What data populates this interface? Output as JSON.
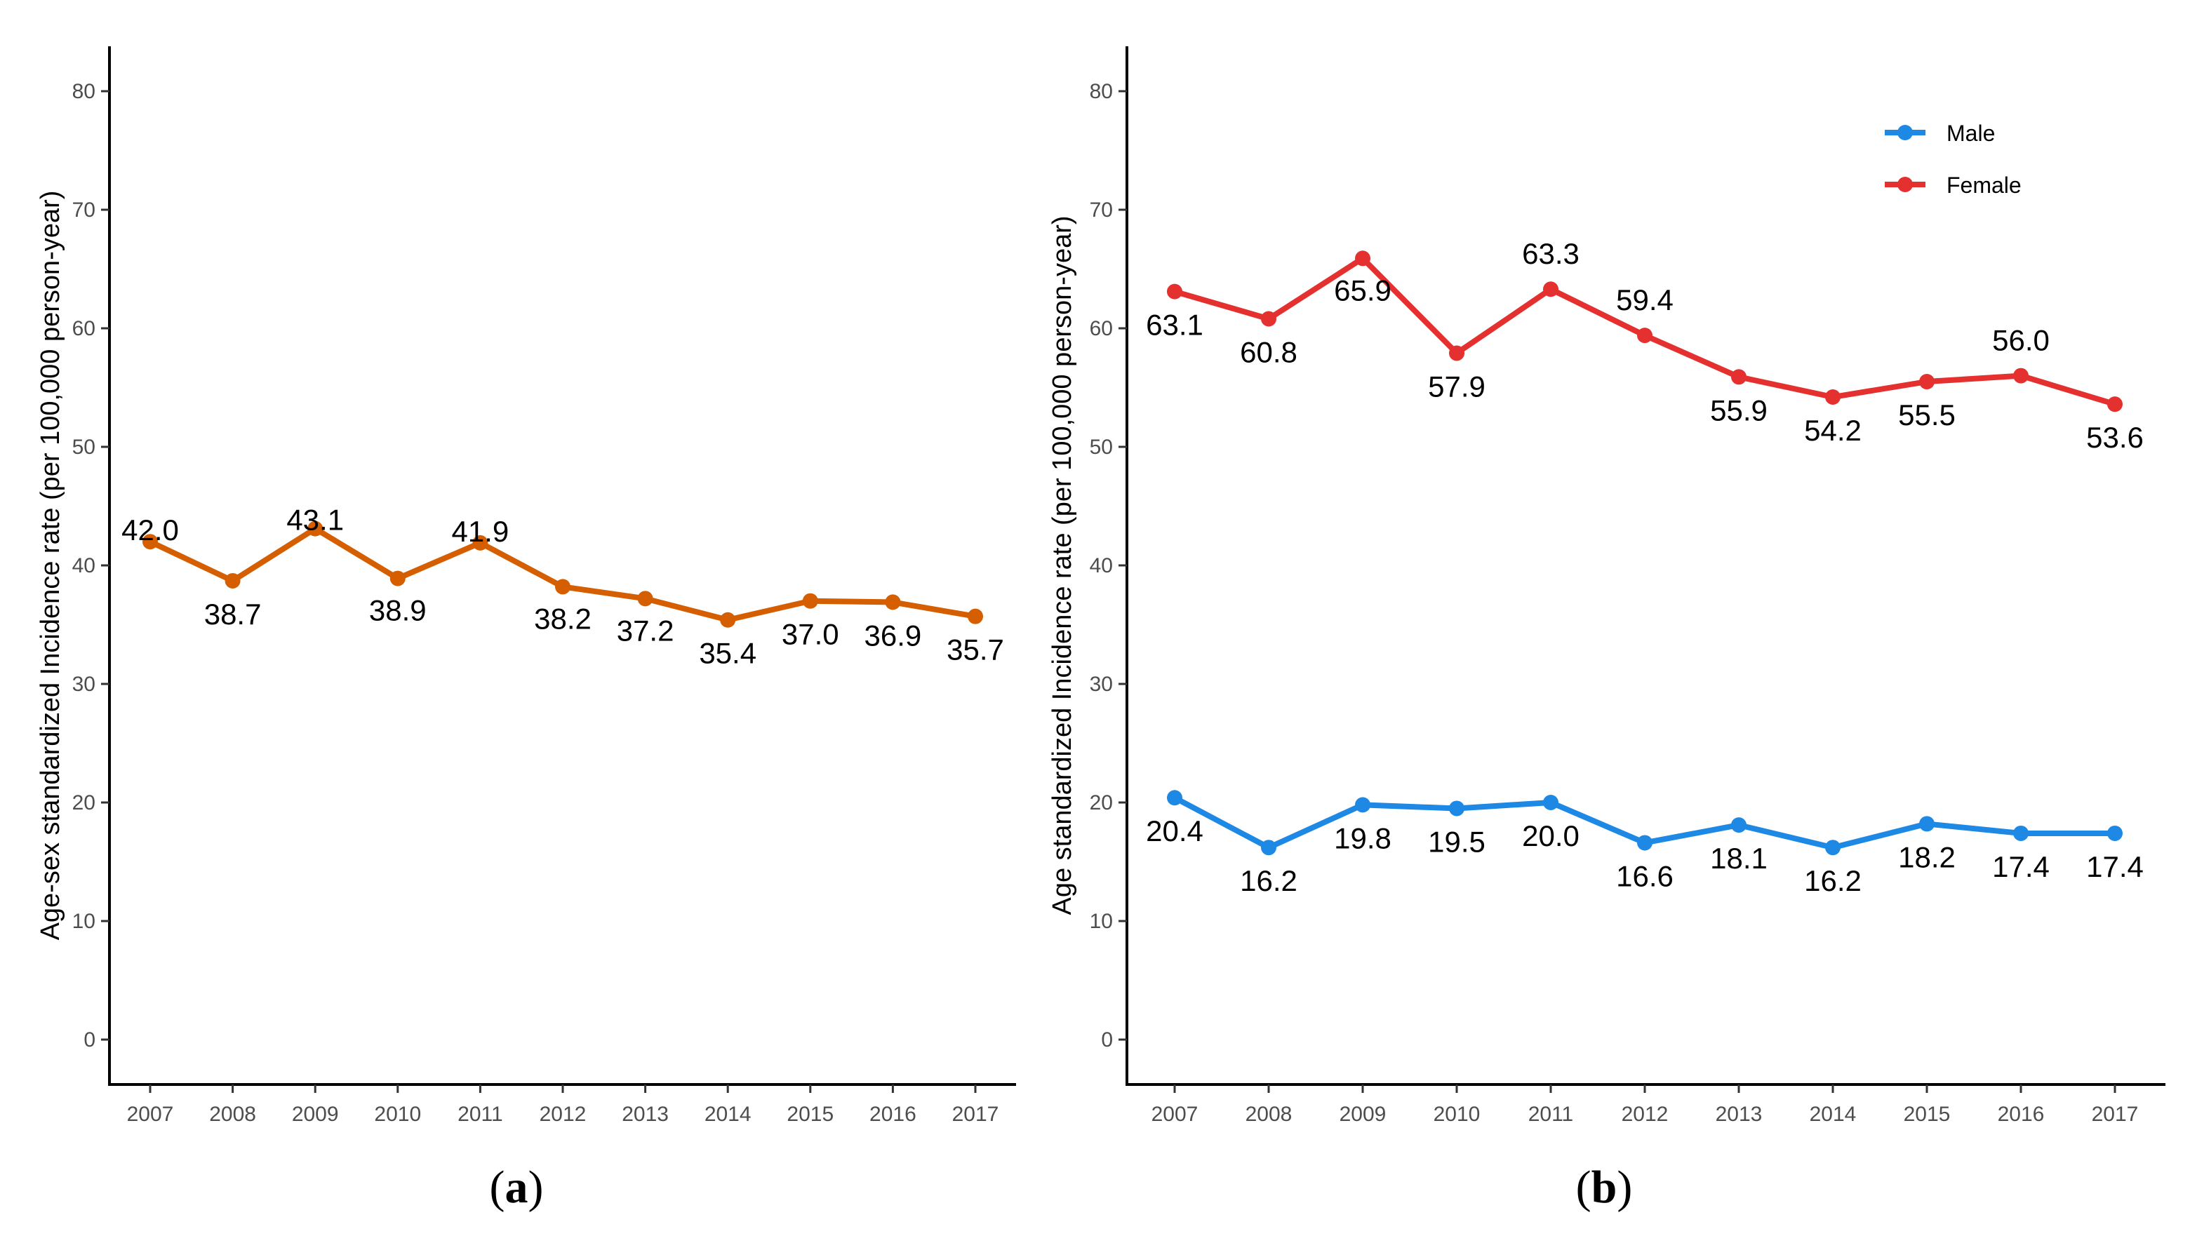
{
  "colors": {
    "overall": "#D55E00",
    "male": "#1E88E5",
    "female": "#E53030",
    "axis": "#000000",
    "tick_text": "#4d4d4d"
  },
  "chart_data": [
    {
      "type": "line",
      "panel_label": "a",
      "ylabel": "Age-sex standardized Incidence rate (per 100,000 person-year)",
      "xlabel": "",
      "ylim": [
        0,
        80
      ],
      "yticks": [
        0,
        10,
        20,
        30,
        40,
        50,
        60,
        70,
        80
      ],
      "x": [
        "2007",
        "2008",
        "2009",
        "2010",
        "2011",
        "2012",
        "2013",
        "2014",
        "2015",
        "2016",
        "2017"
      ],
      "series": [
        {
          "values": [
            42.0,
            38.7,
            43.1,
            38.9,
            41.9,
            38.2,
            37.2,
            35.4,
            37.0,
            36.9,
            35.7
          ],
          "labels": [
            "42.0",
            "38.7",
            "43.1",
            "38.9",
            "41.9",
            "38.2",
            "37.2",
            "35.4",
            "37.0",
            "36.9",
            "35.7"
          ],
          "color": "#D55E00"
        }
      ],
      "legend": null,
      "grid": false
    },
    {
      "type": "line",
      "panel_label": "b",
      "ylabel": "Age standardized Incidence rate (per 100,000 person-year)",
      "xlabel": "",
      "ylim": [
        0,
        80
      ],
      "yticks": [
        0,
        10,
        20,
        30,
        40,
        50,
        60,
        70,
        80
      ],
      "x": [
        "2007",
        "2008",
        "2009",
        "2010",
        "2011",
        "2012",
        "2013",
        "2014",
        "2015",
        "2016",
        "2017"
      ],
      "series": [
        {
          "name": "Male",
          "values": [
            20.4,
            16.2,
            19.8,
            19.5,
            20.0,
            16.6,
            18.1,
            16.2,
            18.2,
            17.4,
            17.4
          ],
          "labels": [
            "20.4",
            "16.2",
            "19.8",
            "19.5",
            "20.0",
            "16.6",
            "18.1",
            "16.2",
            "18.2",
            "17.4",
            "17.4"
          ],
          "color": "#1E88E5"
        },
        {
          "name": "Female",
          "values": [
            63.1,
            60.8,
            65.9,
            57.9,
            63.3,
            59.4,
            55.9,
            54.2,
            55.5,
            56.0,
            53.6
          ],
          "labels": [
            "63.1",
            "60.8",
            "65.9",
            "57.9",
            "63.3",
            "59.4",
            "55.9",
            "54.2",
            "55.5",
            "56.0",
            "53.6"
          ],
          "color": "#E53030"
        }
      ],
      "legend": "top-right",
      "grid": false
    }
  ]
}
